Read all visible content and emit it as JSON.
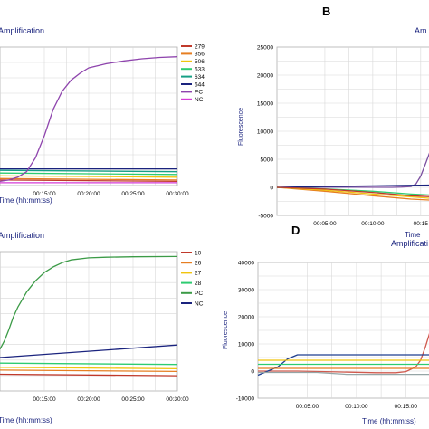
{
  "chart_data": [
    {
      "id": "A",
      "type": "line",
      "title": "Amplification",
      "xlabel": "Time (hh:mm:ss)",
      "x_ticks": [
        "00:15:00",
        "00:20:00",
        "00:25:00",
        "00:30:00"
      ],
      "x_minutes": [
        15,
        20,
        25,
        30
      ],
      "xlim": [
        10,
        30
      ],
      "ylim": [
        0,
        1
      ],
      "grid": true,
      "legend_position": "right",
      "series": [
        {
          "name": "279",
          "color": "#c0392b",
          "x": [
            10,
            30
          ],
          "y": [
            0.04,
            0.03
          ]
        },
        {
          "name": "356",
          "color": "#e67e22",
          "x": [
            10,
            30
          ],
          "y": [
            0.05,
            0.04
          ]
        },
        {
          "name": "506",
          "color": "#f1c40f",
          "x": [
            10,
            30
          ],
          "y": [
            0.07,
            0.06
          ]
        },
        {
          "name": "633",
          "color": "#2ecc71",
          "x": [
            10,
            30
          ],
          "y": [
            0.09,
            0.08
          ]
        },
        {
          "name": "634",
          "color": "#16a085",
          "x": [
            10,
            30
          ],
          "y": [
            0.11,
            0.1
          ]
        },
        {
          "name": "644",
          "color": "#1a237e",
          "x": [
            10,
            30
          ],
          "y": [
            0.12,
            0.12
          ]
        },
        {
          "name": "PC",
          "color": "#8e44ad",
          "x": [
            10,
            11,
            12,
            13,
            14,
            15,
            16,
            17,
            18,
            19,
            20,
            22,
            24,
            26,
            28,
            30
          ],
          "y": [
            0.03,
            0.04,
            0.06,
            0.1,
            0.2,
            0.36,
            0.55,
            0.68,
            0.76,
            0.81,
            0.85,
            0.88,
            0.9,
            0.915,
            0.925,
            0.93
          ]
        },
        {
          "name": "NC",
          "color": "#d63cd6",
          "x": [
            10,
            30
          ],
          "y": [
            0.02,
            0.02
          ]
        }
      ]
    },
    {
      "id": "B",
      "type": "line",
      "title": "",
      "xlabel": "Time",
      "ylabel": "Fluorescence",
      "y_ticks": [
        25000,
        20000,
        15000,
        10000,
        5000,
        0,
        -5000
      ],
      "x_ticks": [
        "00:05:00",
        "00:10:00",
        "00:15"
      ],
      "x_minutes": [
        5,
        10,
        15
      ],
      "xlim": [
        0,
        17
      ],
      "ylim": [
        -5000,
        25000
      ],
      "grid": true,
      "series": [
        {
          "name": "purple",
          "color": "#7b4fa0",
          "x": [
            0,
            4,
            8,
            12,
            13,
            14,
            14.5,
            15,
            15.5,
            16,
            16.4
          ],
          "y": [
            0,
            20,
            40,
            0,
            50,
            150,
            600,
            2000,
            4200,
            6500,
            8500
          ]
        },
        {
          "name": "orange",
          "color": "#e67e22",
          "x": [
            0,
            5,
            10,
            14,
            16.4
          ],
          "y": [
            0,
            -700,
            -1500,
            -2100,
            -2300
          ]
        },
        {
          "name": "yellow",
          "color": "#f1c40f",
          "x": [
            0,
            5,
            10,
            14,
            16.4
          ],
          "y": [
            0,
            -500,
            -1200,
            -1700,
            -2000
          ]
        },
        {
          "name": "green",
          "color": "#2ecc71",
          "x": [
            0,
            5,
            10,
            14,
            16.4
          ],
          "y": [
            0,
            -250,
            -700,
            -1200,
            -1400
          ]
        },
        {
          "name": "blue",
          "color": "#1a237e",
          "x": [
            0,
            5,
            10,
            14,
            16.4
          ],
          "y": [
            0,
            150,
            250,
            350,
            400
          ]
        },
        {
          "name": "red",
          "color": "#c0392b",
          "x": [
            0,
            5,
            10,
            14,
            16.4
          ],
          "y": [
            0,
            -300,
            -900,
            -1500,
            -1700
          ]
        }
      ]
    },
    {
      "id": "C",
      "type": "line",
      "title": "Amplification",
      "xlabel": "Time (hh:mm:ss)",
      "x_ticks": [
        "00:15:00",
        "00:20:00",
        "00:25:00",
        "00:30:00"
      ],
      "x_minutes": [
        15,
        20,
        25,
        30
      ],
      "xlim": [
        10,
        30
      ],
      "ylim": [
        0,
        1
      ],
      "grid": true,
      "legend_position": "right",
      "series": [
        {
          "name": "10",
          "color": "#c0392b",
          "x": [
            10,
            30
          ],
          "y": [
            0.12,
            0.11
          ]
        },
        {
          "name": "26",
          "color": "#e67e22",
          "x": [
            10,
            30
          ],
          "y": [
            0.15,
            0.14
          ]
        },
        {
          "name": "27",
          "color": "#f1c40f",
          "x": [
            10,
            30
          ],
          "y": [
            0.17,
            0.16
          ]
        },
        {
          "name": "28",
          "color": "#2ecc71",
          "x": [
            10,
            30
          ],
          "y": [
            0.2,
            0.19
          ]
        },
        {
          "name": "PC",
          "color": "#3c9b47",
          "x": [
            10,
            10.5,
            11,
            11.5,
            12,
            13,
            14,
            15,
            16,
            17,
            18,
            20,
            22,
            25,
            30
          ],
          "y": [
            0.3,
            0.36,
            0.44,
            0.53,
            0.6,
            0.71,
            0.79,
            0.85,
            0.89,
            0.92,
            0.94,
            0.955,
            0.96,
            0.963,
            0.965
          ]
        },
        {
          "name": "NC",
          "color": "#1a237e",
          "x": [
            10,
            30
          ],
          "y": [
            0.24,
            0.33
          ]
        }
      ]
    },
    {
      "id": "D",
      "type": "line",
      "title": "Amplificati",
      "xlabel": "Time (hh:mm:ss)",
      "ylabel": "Fluorescence",
      "y_ticks": [
        40000,
        30000,
        20000,
        10000,
        0,
        -10000
      ],
      "x_ticks": [
        "00:05:00",
        "00:10:00",
        "00:15:00"
      ],
      "x_minutes": [
        5,
        10,
        15
      ],
      "xlim": [
        0,
        18
      ],
      "ylim": [
        -10000,
        40000
      ],
      "grid": true,
      "series": [
        {
          "name": "red",
          "color": "#d05a4e",
          "x": [
            0,
            4,
            8,
            12,
            14,
            15,
            16,
            16.5,
            17,
            17.5,
            18
          ],
          "y": [
            0,
            0,
            -300,
            -600,
            -600,
            -200,
            1500,
            4000,
            9000,
            15000,
            19000
          ]
        },
        {
          "name": "blue",
          "color": "#1f3f8f",
          "x": [
            0,
            2,
            3,
            4,
            6,
            10,
            14,
            18
          ],
          "y": [
            -1500,
            1500,
            4500,
            6000,
            6000,
            6000,
            6000,
            6000
          ]
        },
        {
          "name": "yellow",
          "color": "#f1c40f",
          "x": [
            0,
            18
          ],
          "y": [
            4000,
            4000
          ]
        },
        {
          "name": "green",
          "color": "#2ecc71",
          "x": [
            0,
            18
          ],
          "y": [
            2500,
            2500
          ]
        },
        {
          "name": "orange",
          "color": "#e67e22",
          "x": [
            0,
            18
          ],
          "y": [
            1000,
            1000
          ]
        },
        {
          "name": "gray",
          "color": "#95a5a6",
          "x": [
            0,
            6,
            9,
            18
          ],
          "y": [
            -500,
            -500,
            -1200,
            -1200
          ]
        }
      ]
    }
  ],
  "panel_labels": {
    "B": "B",
    "D": "D"
  }
}
